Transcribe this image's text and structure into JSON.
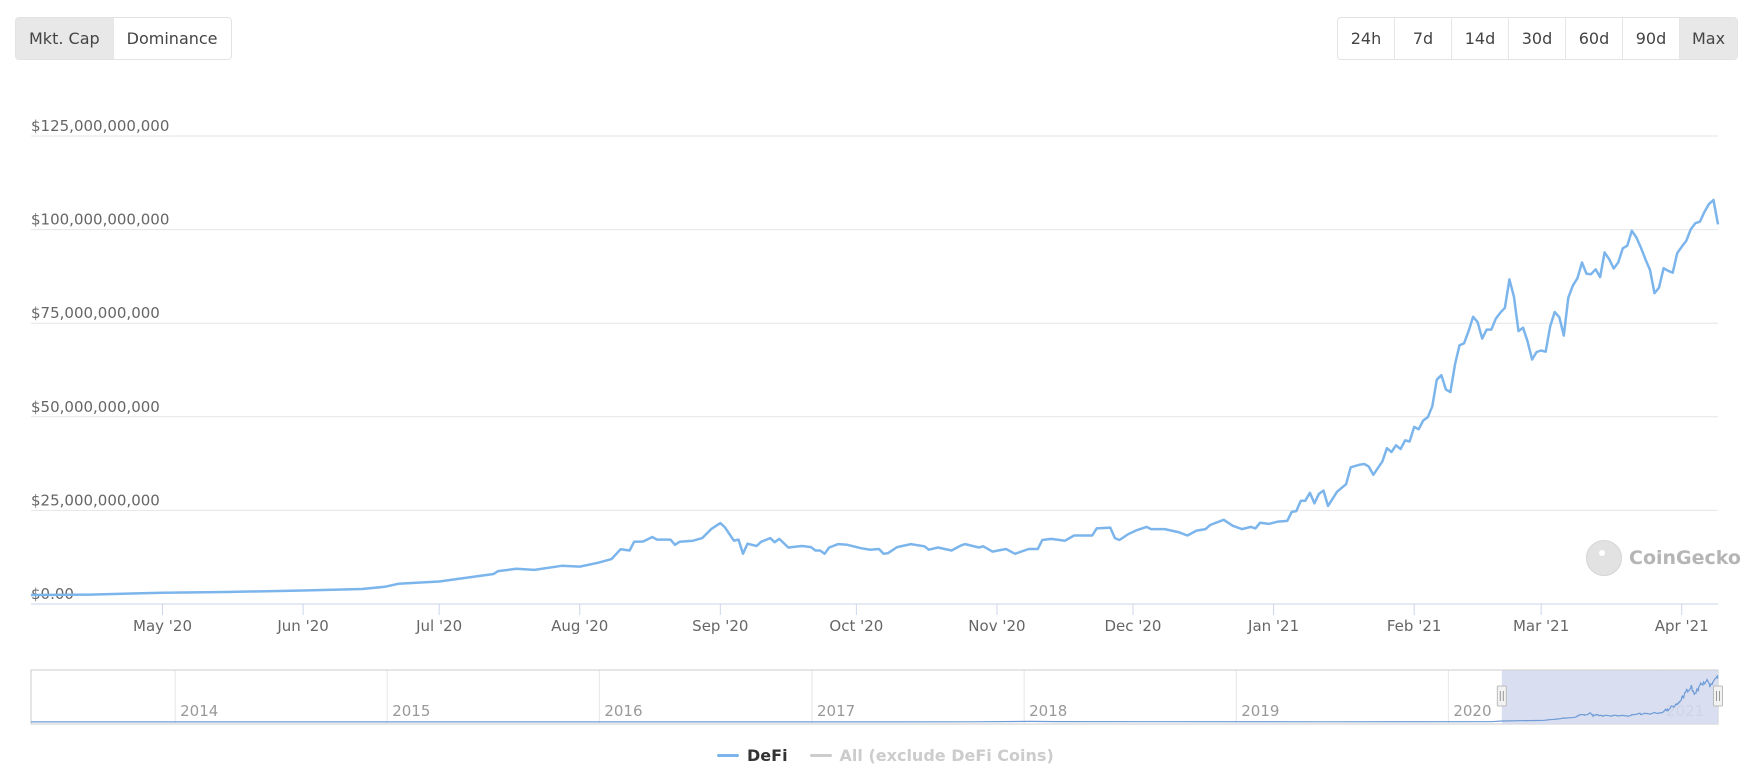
{
  "toolbar": {
    "type_buttons": [
      {
        "label": "Mkt. Cap",
        "active": true
      },
      {
        "label": "Dominance",
        "active": false
      }
    ],
    "range_buttons": [
      {
        "label": "24h",
        "active": false
      },
      {
        "label": "7d",
        "active": false
      },
      {
        "label": "14d",
        "active": false
      },
      {
        "label": "30d",
        "active": false
      },
      {
        "label": "60d",
        "active": false
      },
      {
        "label": "90d",
        "active": false
      },
      {
        "label": "Max",
        "active": true
      }
    ]
  },
  "watermark": {
    "text": "CoinGecko",
    "icon": "gecko-logo-icon"
  },
  "colors": {
    "defi": "#7cb5ec",
    "all": "#cccccc",
    "grid": "#e6e6e6",
    "axis": "#ccd6eb",
    "navigator_mask": "#d5dcee"
  },
  "chart_data": {
    "type": "line",
    "title": "",
    "xlabel": "",
    "ylabel": "",
    "ylim": [
      0,
      125000000000
    ],
    "xlim": [
      "2020-04-02",
      "2021-04-09"
    ],
    "grid": true,
    "legend_placement": "bottom",
    "y_ticks": [
      {
        "value": 0,
        "label": "$0.00"
      },
      {
        "value": 25000000000,
        "label": "$25,000,000,000"
      },
      {
        "value": 50000000000,
        "label": "$50,000,000,000"
      },
      {
        "value": 75000000000,
        "label": "$75,000,000,000"
      },
      {
        "value": 100000000000,
        "label": "$100,000,000,000"
      },
      {
        "value": 125000000000,
        "label": "$125,000,000,000"
      }
    ],
    "x_ticks": [
      {
        "date": "2020-05-01",
        "label": "May '20"
      },
      {
        "date": "2020-06-01",
        "label": "Jun '20"
      },
      {
        "date": "2020-07-01",
        "label": "Jul '20"
      },
      {
        "date": "2020-08-01",
        "label": "Aug '20"
      },
      {
        "date": "2020-09-01",
        "label": "Sep '20"
      },
      {
        "date": "2020-10-01",
        "label": "Oct '20"
      },
      {
        "date": "2020-11-01",
        "label": "Nov '20"
      },
      {
        "date": "2020-12-01",
        "label": "Dec '20"
      },
      {
        "date": "2021-01-01",
        "label": "Jan '21"
      },
      {
        "date": "2021-02-01",
        "label": "Feb '21"
      },
      {
        "date": "2021-03-01",
        "label": "Mar '21"
      },
      {
        "date": "2021-04-01",
        "label": "Apr '21"
      }
    ],
    "value_unit": "USD billions",
    "series": [
      {
        "name": "DeFi",
        "visible": true,
        "color": "#7cb5ec",
        "points": [
          [
            "2020-04-02",
            2.4
          ],
          [
            "2020-04-15",
            2.5
          ],
          [
            "2020-05-01",
            3.0
          ],
          [
            "2020-05-15",
            3.2
          ],
          [
            "2020-06-01",
            3.6
          ],
          [
            "2020-06-14",
            4.0
          ],
          [
            "2020-06-19",
            4.6
          ],
          [
            "2020-06-22",
            5.4
          ],
          [
            "2020-07-01",
            6.0
          ],
          [
            "2020-07-07",
            7.0
          ],
          [
            "2020-07-13",
            8.0
          ],
          [
            "2020-07-14",
            8.8
          ],
          [
            "2020-07-18",
            9.4
          ],
          [
            "2020-07-22",
            9.1
          ],
          [
            "2020-07-28",
            10.2
          ],
          [
            "2020-08-01",
            10.0
          ],
          [
            "2020-08-05",
            11.0
          ],
          [
            "2020-08-08",
            12.0
          ],
          [
            "2020-08-10",
            14.6
          ],
          [
            "2020-08-12",
            14.3
          ],
          [
            "2020-08-13",
            16.6
          ],
          [
            "2020-08-15",
            16.7
          ],
          [
            "2020-08-17",
            17.9
          ],
          [
            "2020-08-18",
            17.2
          ],
          [
            "2020-08-21",
            17.2
          ],
          [
            "2020-08-22",
            15.8
          ],
          [
            "2020-08-23",
            16.6
          ],
          [
            "2020-08-26",
            16.9
          ],
          [
            "2020-08-28",
            17.6
          ],
          [
            "2020-08-30",
            20.0
          ],
          [
            "2020-09-01",
            21.6
          ],
          [
            "2020-09-02",
            20.5
          ],
          [
            "2020-09-04",
            16.9
          ],
          [
            "2020-09-05",
            17.2
          ],
          [
            "2020-09-06",
            13.4
          ],
          [
            "2020-09-07",
            16.1
          ],
          [
            "2020-09-09",
            15.5
          ],
          [
            "2020-09-10",
            16.6
          ],
          [
            "2020-09-12",
            17.6
          ],
          [
            "2020-09-13",
            16.5
          ],
          [
            "2020-09-14",
            17.4
          ],
          [
            "2020-09-16",
            15.1
          ],
          [
            "2020-09-19",
            15.5
          ],
          [
            "2020-09-21",
            15.2
          ],
          [
            "2020-09-22",
            14.3
          ],
          [
            "2020-09-23",
            14.3
          ],
          [
            "2020-09-24",
            13.4
          ],
          [
            "2020-09-25",
            15.1
          ],
          [
            "2020-09-27",
            16.0
          ],
          [
            "2020-09-29",
            15.8
          ],
          [
            "2020-10-02",
            14.9
          ],
          [
            "2020-10-04",
            14.5
          ],
          [
            "2020-10-06",
            14.7
          ],
          [
            "2020-10-07",
            13.4
          ],
          [
            "2020-10-08",
            13.6
          ],
          [
            "2020-10-10",
            15.2
          ],
          [
            "2020-10-13",
            16.0
          ],
          [
            "2020-10-16",
            15.4
          ],
          [
            "2020-10-17",
            14.5
          ],
          [
            "2020-10-19",
            15.1
          ],
          [
            "2020-10-22",
            14.3
          ],
          [
            "2020-10-24",
            15.6
          ],
          [
            "2020-10-25",
            16.0
          ],
          [
            "2020-10-28",
            15.1
          ],
          [
            "2020-10-29",
            15.4
          ],
          [
            "2020-10-31",
            14.0
          ],
          [
            "2020-11-03",
            14.7
          ],
          [
            "2020-11-05",
            13.4
          ],
          [
            "2020-11-08",
            14.7
          ],
          [
            "2020-11-10",
            14.7
          ],
          [
            "2020-11-11",
            17.1
          ],
          [
            "2020-11-13",
            17.4
          ],
          [
            "2020-11-16",
            16.9
          ],
          [
            "2020-11-18",
            18.3
          ],
          [
            "2020-11-22",
            18.3
          ],
          [
            "2020-11-23",
            20.2
          ],
          [
            "2020-11-26",
            20.4
          ],
          [
            "2020-11-27",
            17.6
          ],
          [
            "2020-11-28",
            17.1
          ],
          [
            "2020-11-30",
            18.7
          ],
          [
            "2020-12-02",
            19.8
          ],
          [
            "2020-12-04",
            20.6
          ],
          [
            "2020-12-05",
            20.0
          ],
          [
            "2020-12-08",
            20.0
          ],
          [
            "2020-12-11",
            19.2
          ],
          [
            "2020-12-13",
            18.3
          ],
          [
            "2020-12-15",
            19.6
          ],
          [
            "2020-12-17",
            20.0
          ],
          [
            "2020-12-18",
            21.1
          ],
          [
            "2020-12-21",
            22.5
          ],
          [
            "2020-12-23",
            20.9
          ],
          [
            "2020-12-25",
            20.0
          ],
          [
            "2020-12-27",
            20.6
          ],
          [
            "2020-12-28",
            20.2
          ],
          [
            "2020-12-29",
            21.7
          ],
          [
            "2020-12-31",
            21.4
          ],
          [
            "2021-01-02",
            22.0
          ],
          [
            "2021-01-04",
            22.2
          ],
          [
            "2021-01-05",
            24.6
          ],
          [
            "2021-01-06",
            24.8
          ],
          [
            "2021-01-07",
            27.6
          ],
          [
            "2021-01-08",
            27.6
          ],
          [
            "2021-01-09",
            29.7
          ],
          [
            "2021-01-10",
            26.9
          ],
          [
            "2021-01-11",
            29.4
          ],
          [
            "2021-01-12",
            30.3
          ],
          [
            "2021-01-13",
            26.2
          ],
          [
            "2021-01-15",
            30.0
          ],
          [
            "2021-01-17",
            32.0
          ],
          [
            "2021-01-18",
            36.5
          ],
          [
            "2021-01-20",
            37.2
          ],
          [
            "2021-01-21",
            37.4
          ],
          [
            "2021-01-22",
            36.7
          ],
          [
            "2021-01-23",
            34.5
          ],
          [
            "2021-01-25",
            38.1
          ],
          [
            "2021-01-26",
            41.6
          ],
          [
            "2021-01-27",
            40.6
          ],
          [
            "2021-01-28",
            42.4
          ],
          [
            "2021-01-29",
            41.4
          ],
          [
            "2021-01-30",
            43.7
          ],
          [
            "2021-01-31",
            43.4
          ],
          [
            "2021-02-01",
            47.3
          ],
          [
            "2021-02-02",
            46.7
          ],
          [
            "2021-02-03",
            49.0
          ],
          [
            "2021-02-04",
            49.9
          ],
          [
            "2021-02-05",
            52.8
          ],
          [
            "2021-02-06",
            59.9
          ],
          [
            "2021-02-07",
            61.1
          ],
          [
            "2021-02-08",
            57.3
          ],
          [
            "2021-02-09",
            56.6
          ],
          [
            "2021-02-10",
            64.0
          ],
          [
            "2021-02-11",
            69.1
          ],
          [
            "2021-02-12",
            69.6
          ],
          [
            "2021-02-13",
            72.9
          ],
          [
            "2021-02-14",
            76.7
          ],
          [
            "2021-02-15",
            75.3
          ],
          [
            "2021-02-16",
            70.9
          ],
          [
            "2021-02-17",
            73.3
          ],
          [
            "2021-02-18",
            73.3
          ],
          [
            "2021-02-19",
            76.2
          ],
          [
            "2021-02-20",
            77.8
          ],
          [
            "2021-02-21",
            79.1
          ],
          [
            "2021-02-22",
            86.7
          ],
          [
            "2021-02-23",
            82.1
          ],
          [
            "2021-02-24",
            72.9
          ],
          [
            "2021-02-25",
            73.8
          ],
          [
            "2021-02-26",
            70.2
          ],
          [
            "2021-02-27",
            65.3
          ],
          [
            "2021-02-28",
            67.3
          ],
          [
            "2021-03-01",
            67.7
          ],
          [
            "2021-03-02",
            67.4
          ],
          [
            "2021-03-03",
            74.2
          ],
          [
            "2021-03-04",
            78.0
          ],
          [
            "2021-03-05",
            76.6
          ],
          [
            "2021-03-06",
            71.7
          ],
          [
            "2021-03-07",
            81.8
          ],
          [
            "2021-03-08",
            85.1
          ],
          [
            "2021-03-09",
            87.0
          ],
          [
            "2021-03-10",
            91.2
          ],
          [
            "2021-03-11",
            88.2
          ],
          [
            "2021-03-12",
            88.1
          ],
          [
            "2021-03-13",
            89.4
          ],
          [
            "2021-03-14",
            87.3
          ],
          [
            "2021-03-15",
            93.9
          ],
          [
            "2021-03-16",
            92.1
          ],
          [
            "2021-03-17",
            89.6
          ],
          [
            "2021-03-18",
            91.2
          ],
          [
            "2021-03-19",
            95.0
          ],
          [
            "2021-03-20",
            95.7
          ],
          [
            "2021-03-21",
            99.7
          ],
          [
            "2021-03-22",
            97.9
          ],
          [
            "2021-03-23",
            95.2
          ],
          [
            "2021-03-24",
            92.1
          ],
          [
            "2021-03-25",
            89.2
          ],
          [
            "2021-03-26",
            83.0
          ],
          [
            "2021-03-27",
            84.5
          ],
          [
            "2021-03-28",
            89.7
          ],
          [
            "2021-03-29",
            89.0
          ],
          [
            "2021-03-30",
            88.5
          ],
          [
            "2021-03-31",
            93.7
          ],
          [
            "2021-04-01",
            95.4
          ],
          [
            "2021-04-02",
            97.0
          ],
          [
            "2021-04-03",
            100.1
          ],
          [
            "2021-04-04",
            101.7
          ],
          [
            "2021-04-05",
            102.1
          ],
          [
            "2021-04-06",
            104.7
          ],
          [
            "2021-04-07",
            106.8
          ],
          [
            "2021-04-08",
            107.9
          ],
          [
            "2021-04-09",
            101.4
          ]
        ]
      },
      {
        "name": "All (exclude DeFi Coins)",
        "visible": false,
        "color": "#cccccc",
        "points": []
      }
    ],
    "navigator": {
      "xlim": [
        "2013-04-28",
        "2021-04-09"
      ],
      "selected_range": [
        "2020-04-02",
        "2021-04-09"
      ],
      "year_ticks": [
        {
          "date": "2014-01-01",
          "label": "2014"
        },
        {
          "date": "2015-01-01",
          "label": "2015"
        },
        {
          "date": "2016-01-01",
          "label": "2016"
        },
        {
          "date": "2017-01-01",
          "label": "2017"
        },
        {
          "date": "2018-01-01",
          "label": "2018"
        },
        {
          "date": "2019-01-01",
          "label": "2019"
        },
        {
          "date": "2020-01-01",
          "label": "2020"
        },
        {
          "date": "2021-01-01",
          "label": "2021"
        }
      ],
      "early_points": [
        [
          "2013-04-28",
          0.2
        ],
        [
          "2016-01-01",
          0.2
        ],
        [
          "2017-03-01",
          0.3
        ],
        [
          "2017-10-01",
          0.5
        ],
        [
          "2018-01-10",
          1.4
        ],
        [
          "2018-03-01",
          0.9
        ],
        [
          "2018-09-01",
          0.6
        ],
        [
          "2019-06-01",
          0.5
        ],
        [
          "2020-03-15",
          0.8
        ]
      ]
    }
  }
}
